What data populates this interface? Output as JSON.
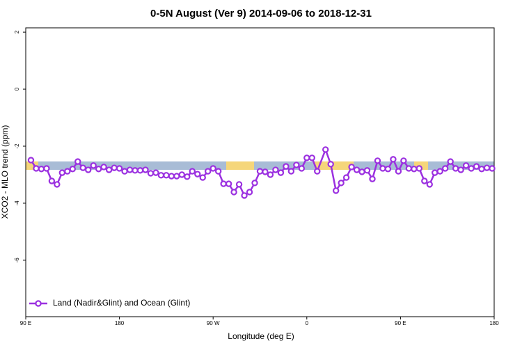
{
  "chart_data": {
    "type": "line",
    "title": "0-5N August (Ver 9)   2014-09-06 to 2018-12-31",
    "xlabel": "Longitude (deg E)",
    "ylabel": "XCO2 - MLO trend (ppm)",
    "xlim": [
      90,
      540
    ],
    "ylim": [
      -7.98,
      2.15
    ],
    "xticks": [
      {
        "value": 90,
        "label": "90 E"
      },
      180,
      {
        "value": 270,
        "label": "90 W"
      },
      {
        "value": 360,
        "label": "0"
      },
      {
        "value": 450,
        "label": "90 E"
      },
      {
        "value": 540,
        "label": "180"
      }
    ],
    "yticks": [
      2,
      0,
      -2,
      -4,
      -6
    ],
    "legend": "bottom-left",
    "series": [
      {
        "name": "Land (Nadir&Glint) and Ocean (Glint)",
        "color": "#9b30e0",
        "x": [
          95,
          100,
          105,
          110,
          115,
          120,
          125,
          130,
          135,
          140,
          145,
          150,
          155,
          160,
          165,
          170,
          175,
          180,
          185,
          190,
          195,
          200,
          205,
          210,
          215,
          220,
          225,
          230,
          235,
          240,
          245,
          250,
          255,
          260,
          265,
          270,
          275,
          280,
          285,
          290,
          295,
          300,
          305,
          310,
          315,
          320,
          325,
          330,
          335,
          340,
          345,
          350,
          355,
          360,
          365,
          370,
          378,
          383,
          388,
          393,
          398,
          403,
          408,
          413,
          418,
          423,
          428,
          433,
          438,
          443,
          448,
          453,
          458,
          463,
          468,
          473,
          478,
          483,
          488,
          493,
          498,
          503,
          508,
          513,
          518,
          523,
          528,
          533,
          538
        ],
        "values": [
          -2.49,
          -2.78,
          -2.8,
          -2.78,
          -3.22,
          -3.34,
          -2.93,
          -2.88,
          -2.8,
          -2.54,
          -2.76,
          -2.83,
          -2.68,
          -2.8,
          -2.73,
          -2.83,
          -2.76,
          -2.78,
          -2.88,
          -2.83,
          -2.85,
          -2.85,
          -2.83,
          -2.95,
          -2.93,
          -3.02,
          -3.02,
          -3.05,
          -3.05,
          -3.0,
          -3.07,
          -2.88,
          -2.98,
          -3.1,
          -2.88,
          -2.78,
          -2.88,
          -3.32,
          -3.32,
          -3.61,
          -3.34,
          -3.73,
          -3.61,
          -3.29,
          -2.88,
          -2.9,
          -3.0,
          -2.83,
          -2.93,
          -2.71,
          -2.88,
          -2.66,
          -2.78,
          -2.41,
          -2.41,
          -2.88,
          -2.12,
          -2.63,
          -3.56,
          -3.29,
          -3.1,
          -2.73,
          -2.83,
          -2.9,
          -2.85,
          -3.15,
          -2.51,
          -2.78,
          -2.8,
          -2.46,
          -2.88,
          -2.51,
          -2.78,
          -2.8,
          -2.78,
          -3.22,
          -3.34,
          -2.93,
          -2.88,
          -2.78,
          -2.54,
          -2.78,
          -2.83,
          -2.68,
          -2.78,
          -2.71,
          -2.8,
          -2.76,
          -2.78
        ]
      }
    ]
  }
}
